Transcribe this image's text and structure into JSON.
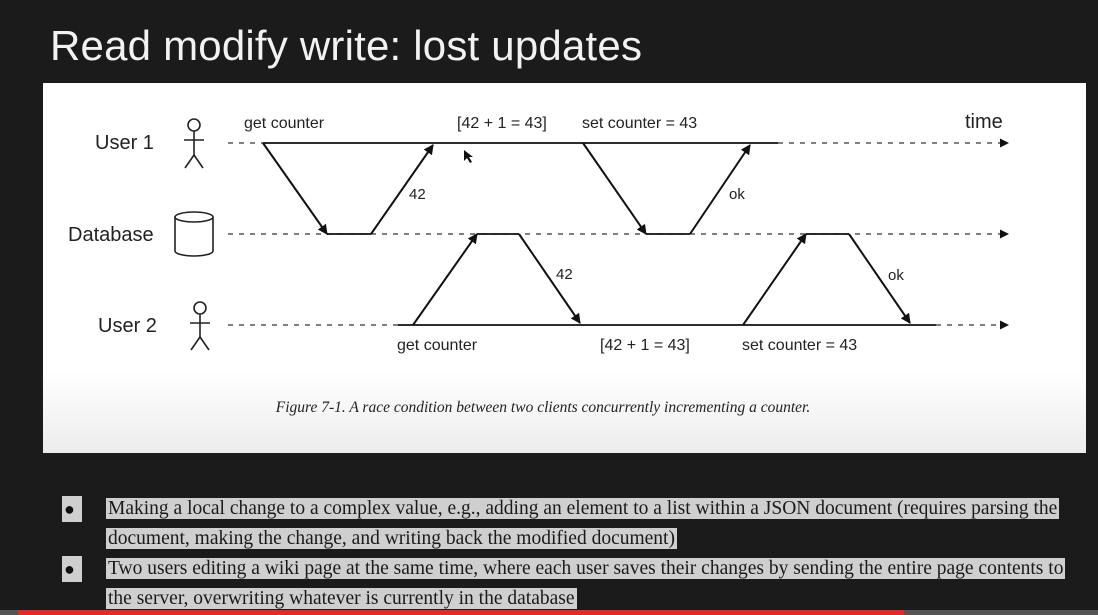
{
  "slide": {
    "title": "Read modify write: lost updates"
  },
  "diagram": {
    "actors": {
      "user1": "User 1",
      "database": "Database",
      "user2": "User 2"
    },
    "time_label": "time",
    "user1_labels": {
      "get": "get counter",
      "compute": "[42 + 1 = 43]",
      "set": "set counter = 43"
    },
    "user2_labels": {
      "get": "get counter",
      "compute": "[42 + 1 = 43]",
      "set": "set counter = 43"
    },
    "responses": {
      "user1_read": "42",
      "user1_write": "ok",
      "user2_read": "42",
      "user2_write": "ok"
    },
    "caption": "Figure 7-1. A race condition between two clients concurrently incrementing a counter."
  },
  "bullets": [
    "Making a local change to a complex value, e.g., adding an element to a list within a JSON document (requires parsing the document, making the change, and writing back the modified document)",
    "Two users editing a wiki page at the same time, where each user saves their changes by sending the entire page contents to the server, overwriting whatever is currently in the database"
  ],
  "video_progress": {
    "fraction": 0.82,
    "fill_color": "#e32a2a",
    "track_color": "#555555"
  }
}
